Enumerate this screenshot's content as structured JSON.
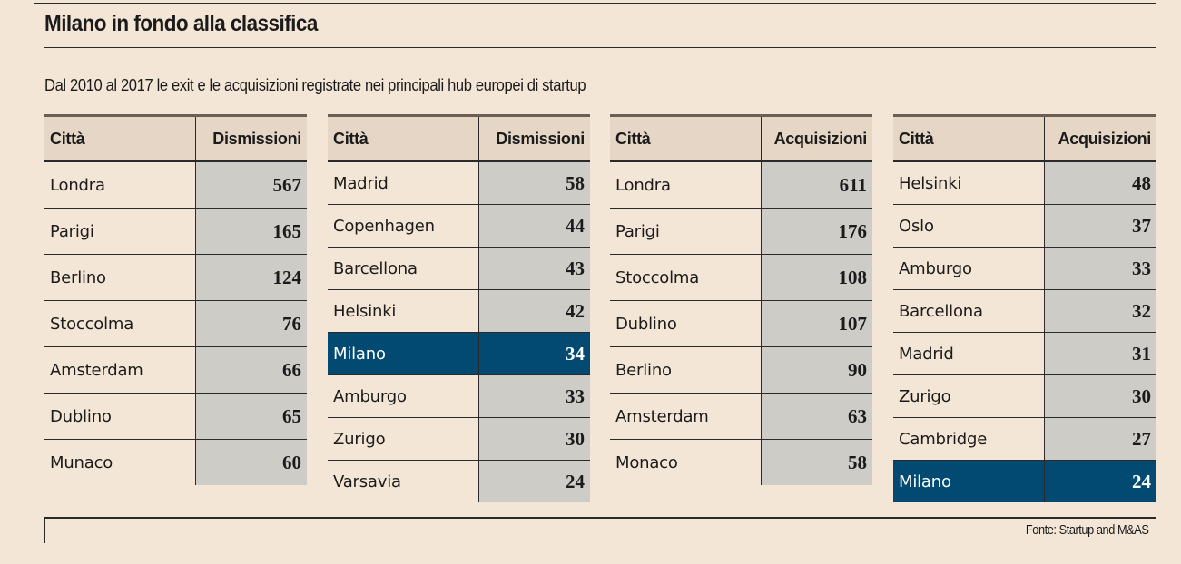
{
  "header": {
    "title": "Milano in fondo alla classifica",
    "subtitle": "Dal 2010 al 2017 le exit e le acquisizioni registrate nei principali hub europei di startup"
  },
  "colors": {
    "background": "#f4e6d6",
    "header_bg": "#e5d6c5",
    "value_bg": "#cdccc7",
    "highlight": "#034a72"
  },
  "source": "Fonte: Startup and M&AS",
  "chart_data": [
    {
      "type": "table",
      "title": "Dismissioni (1)",
      "columns": [
        "Città",
        "Dismissioni"
      ],
      "rows": [
        {
          "city": "Londra",
          "value": "567",
          "highlight": false
        },
        {
          "city": "Parigi",
          "value": "165",
          "highlight": false
        },
        {
          "city": "Berlino",
          "value": "124",
          "highlight": false
        },
        {
          "city": "Stoccolma",
          "value": "76",
          "highlight": false
        },
        {
          "city": "Amsterdam",
          "value": "66",
          "highlight": false
        },
        {
          "city": "Dublino",
          "value": "65",
          "highlight": false
        },
        {
          "city": "Munaco",
          "value": "60",
          "highlight": false
        }
      ]
    },
    {
      "type": "table",
      "title": "Dismissioni (2)",
      "columns": [
        "Città",
        "Dismissioni"
      ],
      "rows": [
        {
          "city": "Madrid",
          "value": "58",
          "highlight": false
        },
        {
          "city": "Copenhagen",
          "value": "44",
          "highlight": false
        },
        {
          "city": "Barcellona",
          "value": "43",
          "highlight": false
        },
        {
          "city": "Helsinki",
          "value": "42",
          "highlight": false
        },
        {
          "city": "Milano",
          "value": "34",
          "highlight": true
        },
        {
          "city": "Amburgo",
          "value": "33",
          "highlight": false
        },
        {
          "city": "Zurigo",
          "value": "30",
          "highlight": false
        },
        {
          "city": "Varsavia",
          "value": "24",
          "highlight": false
        }
      ]
    },
    {
      "type": "table",
      "title": "Acquisizioni (1)",
      "columns": [
        "Città",
        "Acquisizioni"
      ],
      "rows": [
        {
          "city": "Londra",
          "value": "611",
          "highlight": false
        },
        {
          "city": "Parigi",
          "value": "176",
          "highlight": false
        },
        {
          "city": "Stoccolma",
          "value": "108",
          "highlight": false
        },
        {
          "city": "Dublino",
          "value": "107",
          "highlight": false
        },
        {
          "city": "Berlino",
          "value": "90",
          "highlight": false
        },
        {
          "city": "Amsterdam",
          "value": "63",
          "highlight": false
        },
        {
          "city": "Monaco",
          "value": "58",
          "highlight": false
        }
      ]
    },
    {
      "type": "table",
      "title": "Acquisizioni (2)",
      "columns": [
        "Città",
        "Acquisizioni"
      ],
      "rows": [
        {
          "city": "Helsinki",
          "value": "48",
          "highlight": false
        },
        {
          "city": "Oslo",
          "value": "37",
          "highlight": false
        },
        {
          "city": "Amburgo",
          "value": "33",
          "highlight": false
        },
        {
          "city": "Barcellona",
          "value": "32",
          "highlight": false
        },
        {
          "city": "Madrid",
          "value": "31",
          "highlight": false
        },
        {
          "city": "Zurigo",
          "value": "30",
          "highlight": false
        },
        {
          "city": "Cambridge",
          "value": "27",
          "highlight": false
        },
        {
          "city": "Milano",
          "value": "24",
          "highlight": true
        }
      ]
    }
  ]
}
